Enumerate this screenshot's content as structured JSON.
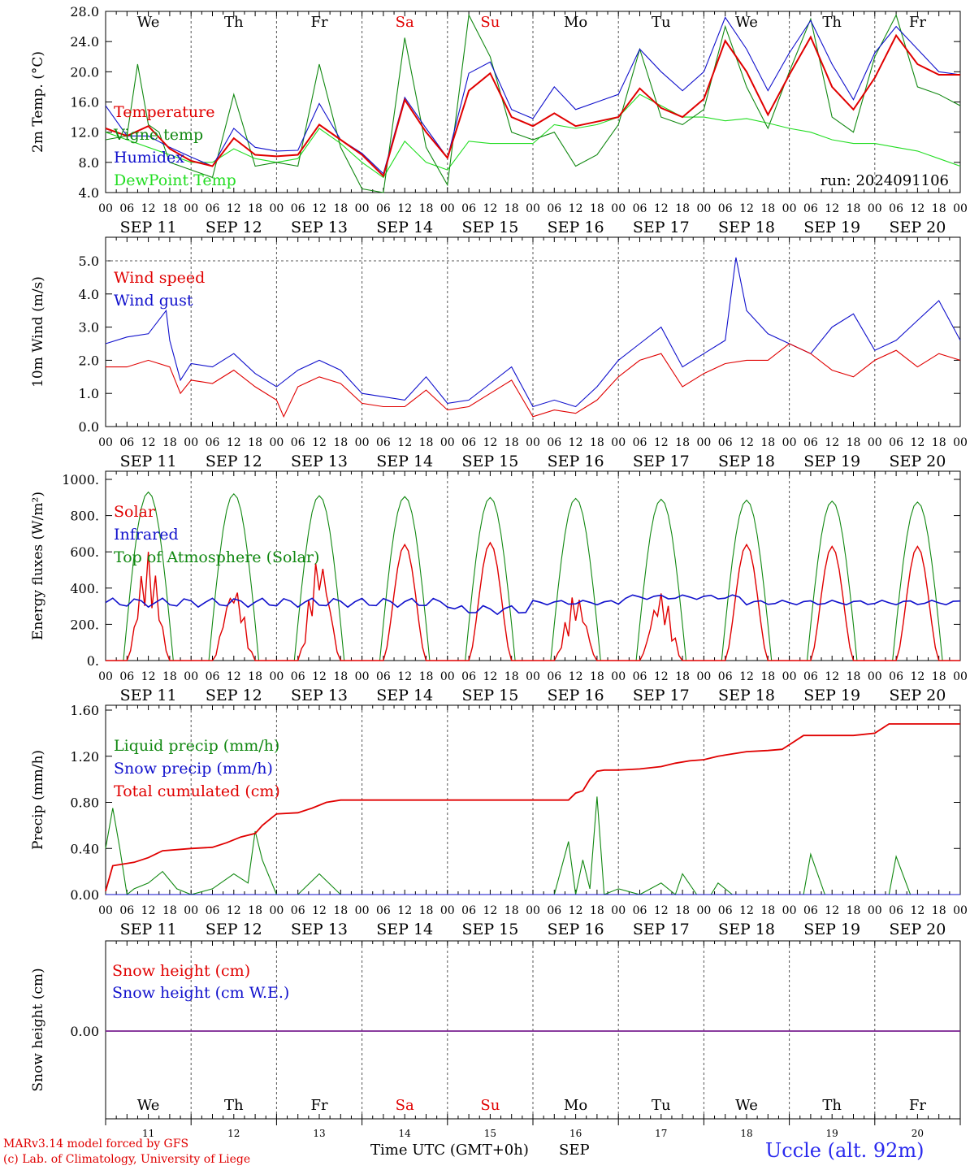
{
  "days": [
    "We",
    "Th",
    "Fr",
    "Sa",
    "Su",
    "Mo",
    "Tu",
    "We",
    "Th",
    "Fr"
  ],
  "weekend_flags": [
    false,
    false,
    false,
    true,
    true,
    false,
    false,
    false,
    false,
    false
  ],
  "dates": [
    "SEP 11",
    "SEP 12",
    "SEP 13",
    "SEP 14",
    "SEP 15",
    "SEP 16",
    "SEP 17",
    "SEP 18",
    "SEP 19",
    "SEP 20"
  ],
  "day_numbers": [
    "11",
    "12",
    "13",
    "14",
    "15",
    "16",
    "17",
    "18",
    "19",
    "20"
  ],
  "hour_labels": [
    "00",
    "06",
    "12",
    "18"
  ],
  "final_hour_label": "00",
  "footer": {
    "model": "MARv3.14 model forced by GFS",
    "copyright": "(c) Lab. of Climatology, University of Liege",
    "time_label": "Time UTC (GMT+0h)",
    "month": "SEP",
    "station": "Uccle (alt. 92m)"
  },
  "colors": {
    "red": "#e00000",
    "green": "#118811",
    "blue": "#1010cc",
    "lightgreen": "#22dd22",
    "purple": "#7a2090"
  },
  "chart_data": [
    {
      "type": "line",
      "ylabel": "2m Temp. (°C)",
      "yticks": [
        "4.0",
        "8.0",
        "12.0",
        "16.0",
        "20.0",
        "24.0",
        "28.0"
      ],
      "ylim": [
        4,
        28
      ],
      "run_label": "run: 2024091106",
      "x_unit": "hours since 2024-09-11 00 UTC",
      "series": [
        {
          "name": "Temperature",
          "color": "red",
          "x": [
            0,
            6,
            12,
            18,
            24,
            30,
            36,
            42,
            48,
            54,
            60,
            66,
            72,
            78,
            84,
            90,
            96,
            102,
            108,
            114,
            120,
            126,
            132,
            138,
            144,
            150,
            156,
            162,
            168,
            174,
            180,
            186,
            192,
            198,
            204,
            210,
            216,
            222,
            228,
            234,
            240
          ],
          "y": [
            12.5,
            11.5,
            12.8,
            9.8,
            8.2,
            7.5,
            11.2,
            9.0,
            8.8,
            9.0,
            13.0,
            11.0,
            9.0,
            6.2,
            16.3,
            12.0,
            8.6,
            17.5,
            19.8,
            14.0,
            12.8,
            14.5,
            12.8,
            13.4,
            14.0,
            17.8,
            15.2,
            14.0,
            16.4,
            24.1,
            20.0,
            14.3,
            19.6,
            24.6,
            18.0,
            15.0,
            19.2,
            24.8,
            21.0,
            19.6,
            19.6
          ]
        },
        {
          "name": "Vigne temp",
          "color": "green",
          "x": [
            0,
            6,
            9,
            12,
            15,
            18,
            24,
            30,
            36,
            42,
            48,
            54,
            60,
            66,
            72,
            78,
            84,
            90,
            96,
            102,
            108,
            114,
            120,
            126,
            132,
            138,
            144,
            150,
            156,
            162,
            168,
            174,
            180,
            186,
            192,
            198,
            204,
            210,
            216,
            222,
            228,
            234,
            240
          ],
          "y": [
            11.0,
            11.5,
            21.0,
            13.0,
            12.0,
            8.0,
            7.0,
            6.0,
            17.0,
            7.5,
            8.0,
            7.5,
            21.0,
            10.0,
            4.5,
            4.0,
            24.5,
            10.0,
            5.0,
            27.5,
            22.0,
            12.0,
            11.0,
            12.0,
            7.5,
            9.0,
            13.0,
            23.0,
            14.0,
            13.0,
            15.0,
            26.0,
            18.0,
            12.5,
            20.0,
            27.0,
            14.0,
            12.0,
            22.0,
            27.5,
            18.0,
            17.0,
            15.5
          ]
        },
        {
          "name": "Humidex",
          "color": "blue",
          "x": [
            0,
            6,
            12,
            18,
            24,
            30,
            36,
            42,
            48,
            54,
            60,
            66,
            72,
            78,
            84,
            90,
            96,
            102,
            108,
            114,
            120,
            126,
            132,
            138,
            144,
            150,
            156,
            162,
            168,
            174,
            180,
            186,
            192,
            198,
            204,
            210,
            216,
            222,
            228,
            234,
            240
          ],
          "y": [
            15.5,
            11.5,
            11.5,
            10.0,
            8.7,
            7.5,
            12.5,
            10.0,
            9.5,
            9.6,
            15.8,
            11.0,
            9.2,
            6.5,
            16.6,
            12.5,
            8.6,
            19.8,
            21.3,
            15.0,
            13.8,
            18.0,
            15.0,
            16.0,
            17.0,
            23.0,
            20.0,
            17.5,
            20.0,
            27.2,
            23.0,
            17.5,
            22.5,
            26.8,
            21.0,
            16.3,
            22.5,
            26.0,
            23.0,
            20.0,
            19.6
          ]
        },
        {
          "name": "DewPoint Temp",
          "color": "lightgreen",
          "x": [
            0,
            6,
            12,
            18,
            24,
            30,
            36,
            42,
            48,
            54,
            60,
            66,
            72,
            78,
            84,
            90,
            96,
            102,
            108,
            114,
            120,
            126,
            132,
            138,
            144,
            150,
            156,
            162,
            168,
            174,
            180,
            186,
            192,
            198,
            204,
            210,
            216,
            222,
            228,
            234,
            240
          ],
          "y": [
            12.0,
            11.0,
            10.0,
            9.0,
            8.0,
            8.0,
            9.8,
            8.5,
            8.0,
            8.5,
            12.5,
            10.5,
            8.0,
            6.0,
            10.8,
            8.0,
            7.0,
            10.8,
            10.5,
            10.5,
            10.5,
            13.0,
            12.5,
            13.0,
            14.0,
            17.0,
            15.5,
            14.0,
            14.0,
            13.5,
            13.8,
            13.2,
            12.5,
            12.0,
            11.0,
            10.5,
            10.5,
            10.0,
            9.5,
            8.5,
            7.5
          ]
        }
      ]
    },
    {
      "type": "line",
      "ylabel": "10m Wind (m/s)",
      "yticks": [
        "0.0",
        "1.0",
        "2.0",
        "3.0",
        "4.0",
        "5.0"
      ],
      "ylim": [
        0,
        5.5
      ],
      "x_unit": "hours since 2024-09-11 00 UTC",
      "series": [
        {
          "name": "Wind speed",
          "color": "red",
          "x": [
            0,
            6,
            12,
            18,
            21,
            24,
            30,
            36,
            42,
            48,
            50,
            54,
            60,
            66,
            72,
            78,
            84,
            90,
            96,
            102,
            108,
            114,
            120,
            126,
            132,
            138,
            144,
            150,
            156,
            162,
            168,
            174,
            180,
            186,
            192,
            198,
            204,
            210,
            216,
            222,
            228,
            234,
            240
          ],
          "y": [
            1.8,
            1.8,
            2.0,
            1.8,
            1.0,
            1.4,
            1.3,
            1.7,
            1.2,
            0.8,
            0.3,
            1.2,
            1.5,
            1.3,
            0.7,
            0.6,
            0.6,
            1.1,
            0.5,
            0.6,
            1.0,
            1.4,
            0.3,
            0.5,
            0.4,
            0.8,
            1.5,
            2.0,
            2.2,
            1.2,
            1.6,
            1.9,
            2.0,
            2.0,
            2.5,
            2.2,
            1.7,
            1.5,
            2.0,
            2.3,
            1.8,
            2.2,
            2.0
          ]
        },
        {
          "name": "Wind gust",
          "color": "blue",
          "x": [
            0,
            6,
            12,
            17,
            18,
            21,
            24,
            30,
            36,
            42,
            48,
            54,
            60,
            66,
            72,
            78,
            84,
            90,
            96,
            102,
            108,
            114,
            120,
            126,
            132,
            138,
            144,
            150,
            156,
            162,
            168,
            174,
            177,
            180,
            186,
            192,
            198,
            204,
            210,
            216,
            222,
            228,
            234,
            240
          ],
          "y": [
            2.5,
            2.7,
            2.8,
            3.5,
            2.6,
            1.4,
            1.9,
            1.8,
            2.2,
            1.6,
            1.2,
            1.7,
            2.0,
            1.7,
            1.0,
            0.9,
            0.8,
            1.5,
            0.7,
            0.8,
            1.3,
            1.8,
            0.6,
            0.8,
            0.6,
            1.2,
            2.0,
            2.5,
            3.0,
            1.8,
            2.2,
            2.6,
            5.1,
            3.5,
            2.8,
            2.5,
            2.2,
            3.0,
            3.4,
            2.3,
            2.6,
            3.2,
            3.8,
            2.6
          ]
        }
      ]
    },
    {
      "type": "line",
      "ylabel": "Energy fluxes (W/m²)",
      "yticks": [
        "0.",
        "200.",
        "400.",
        "600.",
        "800.",
        "1000."
      ],
      "ylim": [
        0,
        1000
      ],
      "x_unit": "hours since 2024-09-11 00 UTC",
      "series": [
        {
          "name": "Solar",
          "color": "red",
          "peaks": [
            600,
            420,
            580,
            640,
            650,
            370,
            380,
            640,
            630,
            630
          ]
        },
        {
          "name": "Infrared",
          "color": "blue",
          "level": 320
        },
        {
          "name": "Top of Atmosphere (Solar)",
          "color": "green",
          "peaks": [
            930,
            920,
            910,
            905,
            900,
            895,
            890,
            885,
            880,
            875
          ]
        }
      ]
    },
    {
      "type": "line",
      "ylabel": "Precip (mm/h)",
      "yticks": [
        "0.00",
        "0.40",
        "0.80",
        "1.20",
        "1.60"
      ],
      "ylim": [
        0,
        1.6
      ],
      "x_unit": "hours since 2024-09-11 00 UTC",
      "series": [
        {
          "name": "Liquid precip (mm/h)",
          "color": "green",
          "x": [
            0,
            2,
            4,
            6,
            8,
            12,
            16,
            20,
            24,
            30,
            36,
            40,
            42,
            44,
            48,
            54,
            60,
            66,
            72,
            78,
            84,
            90,
            96,
            102,
            108,
            114,
            120,
            126,
            130,
            132,
            134,
            136,
            138,
            140,
            144,
            150,
            156,
            160,
            162,
            166,
            170,
            172,
            176,
            180,
            186,
            192,
            196,
            198,
            202,
            210,
            216,
            220,
            222,
            226,
            232,
            240
          ],
          "y": [
            0.4,
            0.75,
            0.4,
            0.0,
            0.05,
            0.1,
            0.2,
            0.05,
            0.0,
            0.05,
            0.18,
            0.1,
            0.55,
            0.3,
            0.0,
            0.0,
            0.18,
            0.0,
            0.0,
            0.0,
            0.0,
            0.0,
            0.0,
            0.0,
            0.0,
            0.0,
            0.0,
            0.0,
            0.46,
            0.0,
            0.3,
            0.05,
            0.85,
            0.0,
            0.05,
            0.0,
            0.1,
            0.0,
            0.18,
            0.0,
            0.0,
            0.1,
            0.0,
            0.0,
            0.0,
            0.0,
            0.0,
            0.35,
            0.0,
            0.0,
            0.0,
            0.0,
            0.33,
            0.0,
            0.0,
            0.0
          ]
        },
        {
          "name": "Snow precip (mm/h)",
          "color": "blue",
          "x": [
            0,
            240
          ],
          "y": [
            0,
            0
          ]
        },
        {
          "name": "Total cumulated (cm)",
          "color": "red",
          "x": [
            0,
            2,
            8,
            12,
            16,
            24,
            30,
            34,
            38,
            42,
            44,
            46,
            48,
            54,
            58,
            62,
            66,
            72,
            78,
            84,
            90,
            96,
            102,
            108,
            114,
            120,
            126,
            130,
            132,
            134,
            136,
            138,
            140,
            144,
            150,
            156,
            160,
            164,
            168,
            172,
            174,
            180,
            186,
            190,
            192,
            196,
            200,
            210,
            216,
            220,
            240
          ],
          "y": [
            0.03,
            0.25,
            0.28,
            0.32,
            0.38,
            0.4,
            0.41,
            0.45,
            0.5,
            0.53,
            0.6,
            0.65,
            0.7,
            0.71,
            0.75,
            0.8,
            0.82,
            0.82,
            0.82,
            0.82,
            0.82,
            0.82,
            0.82,
            0.82,
            0.82,
            0.82,
            0.82,
            0.82,
            0.88,
            0.9,
            1.0,
            1.07,
            1.08,
            1.08,
            1.09,
            1.11,
            1.14,
            1.16,
            1.17,
            1.2,
            1.21,
            1.24,
            1.25,
            1.26,
            1.3,
            1.38,
            1.38,
            1.38,
            1.4,
            1.48,
            1.48
          ]
        }
      ]
    },
    {
      "type": "line",
      "ylabel": "Snow height (cm)",
      "yticks": [
        "0.00"
      ],
      "x_unit": "hours since 2024-09-11 00 UTC",
      "series": [
        {
          "name": "Snow height (cm)",
          "color": "red",
          "x": [
            0,
            240
          ],
          "y": [
            0,
            0
          ]
        },
        {
          "name": "Snow height (cm W.E.)",
          "color": "blue",
          "x": [
            0,
            240
          ],
          "y": [
            0,
            0
          ]
        }
      ]
    }
  ]
}
